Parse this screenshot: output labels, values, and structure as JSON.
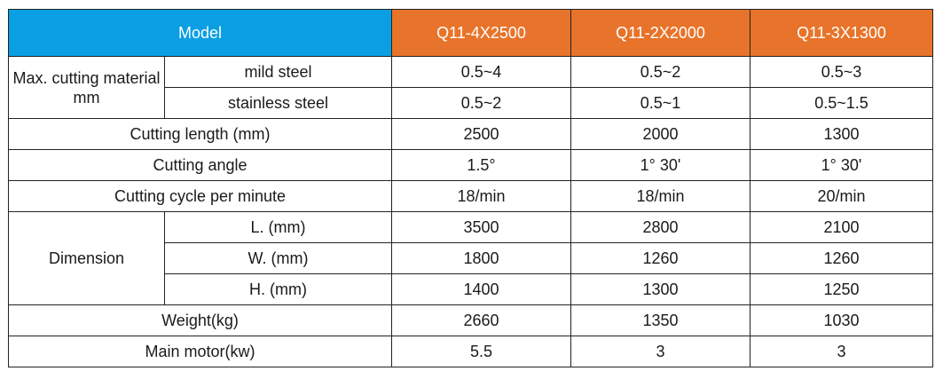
{
  "header": {
    "model_label": "Model",
    "models": [
      "Q11-4X2500",
      "Q11-2X2000",
      "Q11-3X1300"
    ]
  },
  "colors": {
    "model_header_bg": "#0a9fe3",
    "model_columns_bg": "#e8732a",
    "header_text": "#ffffff",
    "border": "#222222"
  },
  "rows": {
    "max_cutting": {
      "group_label": "Max. cutting material mm",
      "mild_steel": {
        "label": "mild steel",
        "values": [
          "0.5~4",
          "0.5~2",
          "0.5~3"
        ]
      },
      "stainless_steel": {
        "label": "stainless steel",
        "values": [
          "0.5~2",
          "0.5~1",
          "0.5~1.5"
        ]
      }
    },
    "cutting_length": {
      "label": "Cutting length (mm)",
      "values": [
        "2500",
        "2000",
        "1300"
      ]
    },
    "cutting_angle": {
      "label": "Cutting angle",
      "values": [
        "1.5°",
        "1° 30'",
        "1° 30'"
      ]
    },
    "cutting_cycle": {
      "label": "Cutting cycle per minute",
      "values": [
        "18/min",
        "18/min",
        "20/min"
      ]
    },
    "dimension": {
      "group_label": "Dimension",
      "length": {
        "label": "L. (mm)",
        "values": [
          "3500",
          "2800",
          "2100"
        ]
      },
      "width": {
        "label": "W. (mm)",
        "values": [
          "1800",
          "1260",
          "1260"
        ]
      },
      "height": {
        "label": "H. (mm)",
        "values": [
          "1400",
          "1300",
          "1250"
        ]
      }
    },
    "weight": {
      "label": "Weight(kg)",
      "values": [
        "2660",
        "1350",
        "1030"
      ]
    },
    "main_motor": {
      "label": "Main motor(kw)",
      "values": [
        "5.5",
        "3",
        "3"
      ]
    }
  }
}
